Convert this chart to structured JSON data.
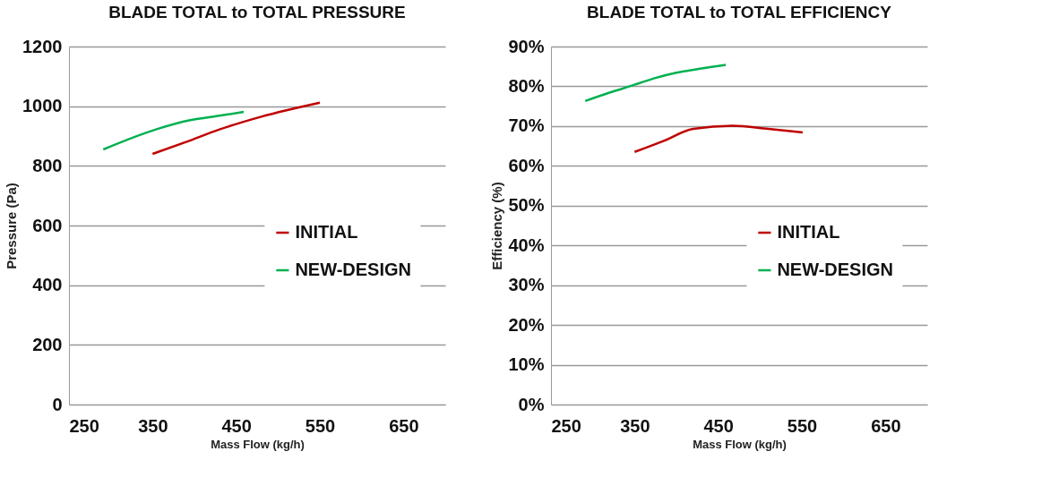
{
  "chart_data": [
    {
      "type": "line",
      "title": "BLADE TOTAL to TOTAL PRESSURE",
      "xlabel": "Mass Flow (kg/h)",
      "ylabel": "Pressure (Pa)",
      "xlim": [
        250,
        700
      ],
      "xticks": [
        250,
        350,
        450,
        550,
        650
      ],
      "ylim": [
        0,
        1200
      ],
      "yticks": [
        0,
        200,
        400,
        600,
        800,
        1000,
        1200
      ],
      "grid": "y",
      "legend": "right",
      "line_style": "solid",
      "series": [
        {
          "name": "INITIAL",
          "color": "#c00000",
          "x": [
            350,
            390,
            430,
            480,
            550
          ],
          "values": [
            840,
            880,
            922,
            965,
            1012
          ]
        },
        {
          "name": "NEW-DESIGN",
          "color": "#00b050",
          "x": [
            291,
            354,
            395,
            430,
            459
          ],
          "values": [
            855,
            922,
            953,
            968,
            981
          ]
        }
      ]
    },
    {
      "type": "line",
      "title": "BLADE TOTAL to TOTAL EFFICIENCY",
      "xlabel": "Mass Flow (kg/h)",
      "ylabel": "Efficiency (%)",
      "xlim": [
        250,
        700
      ],
      "xticks": [
        250,
        350,
        450,
        550,
        650
      ],
      "ylim": [
        0,
        90
      ],
      "yticks": [
        {
          "value": 0,
          "label": "0%"
        },
        {
          "value": 10,
          "label": "10%"
        },
        {
          "value": 20,
          "label": "20%"
        },
        {
          "value": 30,
          "label": "30%"
        },
        {
          "value": 40,
          "label": "40%"
        },
        {
          "value": 50,
          "label": "50%"
        },
        {
          "value": 60,
          "label": "60%"
        },
        {
          "value": 70,
          "label": "70%"
        },
        {
          "value": 80,
          "label": "80%"
        },
        {
          "value": 90,
          "label": "90%"
        }
      ],
      "grid": "y",
      "legend": "right",
      "line_style": "solid",
      "series": [
        {
          "name": "INITIAL",
          "color": "#c00000",
          "x": [
            350,
            385,
            420,
            467,
            510,
            551
          ],
          "values": [
            63.5,
            66.3,
            69.3,
            70.1,
            69.3,
            68.4
          ]
        },
        {
          "name": "NEW-DESIGN",
          "color": "#00b050",
          "x": [
            291,
            320,
            350,
            375,
            400,
            430,
            459
          ],
          "values": [
            76.3,
            78.4,
            80.4,
            82.1,
            83.4,
            84.5,
            85.4
          ]
        }
      ]
    }
  ]
}
